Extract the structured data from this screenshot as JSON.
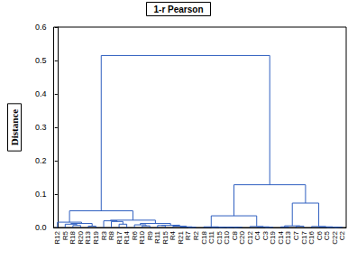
{
  "chart_data": {
    "type": "dendrogram",
    "title": "1-r Pearson",
    "y_label": "Distance",
    "ylim": [
      0,
      0.6
    ],
    "yticks": [
      {
        "value": 0,
        "label": "0.0"
      },
      {
        "value": 0.1,
        "label": "0.1"
      },
      {
        "value": 0.2,
        "label": "0.2"
      },
      {
        "value": 0.3,
        "label": "0.3"
      },
      {
        "value": 0.4,
        "label": "0.4"
      },
      {
        "value": 0.5,
        "label": "0.5"
      },
      {
        "value": 0.6,
        "label": "0.6"
      }
    ],
    "grid": false,
    "color": "#3060c0",
    "tree": {
      "height": 0.515,
      "children": [
        {
          "height": 0.05,
          "children": [
            {
              "height": 0.016,
              "children": [
                "R12",
                {
                  "height": 0.012,
                  "children": [
                    {
                      "height": 0.01,
                      "children": [
                        "R5",
                        {
                          "height": 0.006,
                          "children": [
                            "R18",
                            "R20"
                          ]
                        }
                      ]
                    },
                    {
                      "height": 0.004,
                      "children": [
                        "R13",
                        "R19"
                      ]
                    }
                  ]
                }
              ]
            },
            {
              "height": 0.022,
              "children": [
                {
                  "height": 0.02,
                  "children": [
                    "R3",
                    {
                      "height": 0.018,
                      "children": [
                        "R8",
                        {
                          "height": 0.01,
                          "children": [
                            "R17",
                            "R14"
                          ]
                        }
                      ]
                    }
                  ]
                },
                {
                  "height": 0.012,
                  "children": [
                    {
                      "height": 0.008,
                      "children": [
                        "R6",
                        {
                          "height": 0.005,
                          "children": [
                            "R10",
                            "R9"
                          ]
                        }
                      ]
                    },
                    {
                      "height": 0.007,
                      "children": [
                        {
                          "height": 0.006,
                          "children": [
                            "R11",
                            "R15"
                          ]
                        },
                        {
                          "height": 0.004,
                          "children": [
                            "R4",
                            {
                              "height": 0.002,
                              "children": [
                                "R21",
                                {
                                  "height": 0.001,
                                  "children": [
                                    "R7",
                                    "R2"
                                  ]
                                }
                              ]
                            }
                          ]
                        }
                      ]
                    }
                  ]
                }
              ]
            }
          ]
        },
        {
          "height": 0.128,
          "children": [
            {
              "height": 0.035,
              "children": [
                {
                  "height": 0.002,
                  "children": [
                    "C18",
                    {
                      "height": 0.001,
                      "children": [
                        "C11",
                        {
                          "height": 0.001,
                          "children": [
                            "C15",
                            {
                              "height": 0.001,
                              "children": [
                                "C10",
                                {
                                  "height": 0.001,
                                  "children": [
                                    "C8",
                                    "C20"
                                  ]
                                }
                              ]
                            }
                          ]
                        }
                      ]
                    }
                  ]
                },
                {
                  "height": 0.003,
                  "children": [
                    "C12",
                    {
                      "height": 0.002,
                      "children": [
                        "C4",
                        {
                          "height": 0.001,
                          "children": [
                            "C3",
                            "C19"
                          ]
                        }
                      ]
                    }
                  ]
                }
              ]
            },
            {
              "height": 0.073,
              "children": [
                {
                  "height": 0.005,
                  "children": [
                    {
                      "height": 0.002,
                      "children": [
                        "C14",
                        "C13"
                      ]
                    },
                    {
                      "height": 0.004,
                      "children": [
                        "C7",
                        "C17"
                      ]
                    }
                  ]
                },
                {
                  "height": 0.003,
                  "children": [
                    "C16",
                    {
                      "height": 0.002,
                      "children": [
                        "C6",
                        {
                          "height": 0.001,
                          "children": [
                            "C5",
                            {
                              "height": 0.001,
                              "children": [
                                "C22",
                                "C2"
                              ]
                            }
                          ]
                        }
                      ]
                    }
                  ]
                }
              ]
            }
          ]
        }
      ]
    }
  }
}
